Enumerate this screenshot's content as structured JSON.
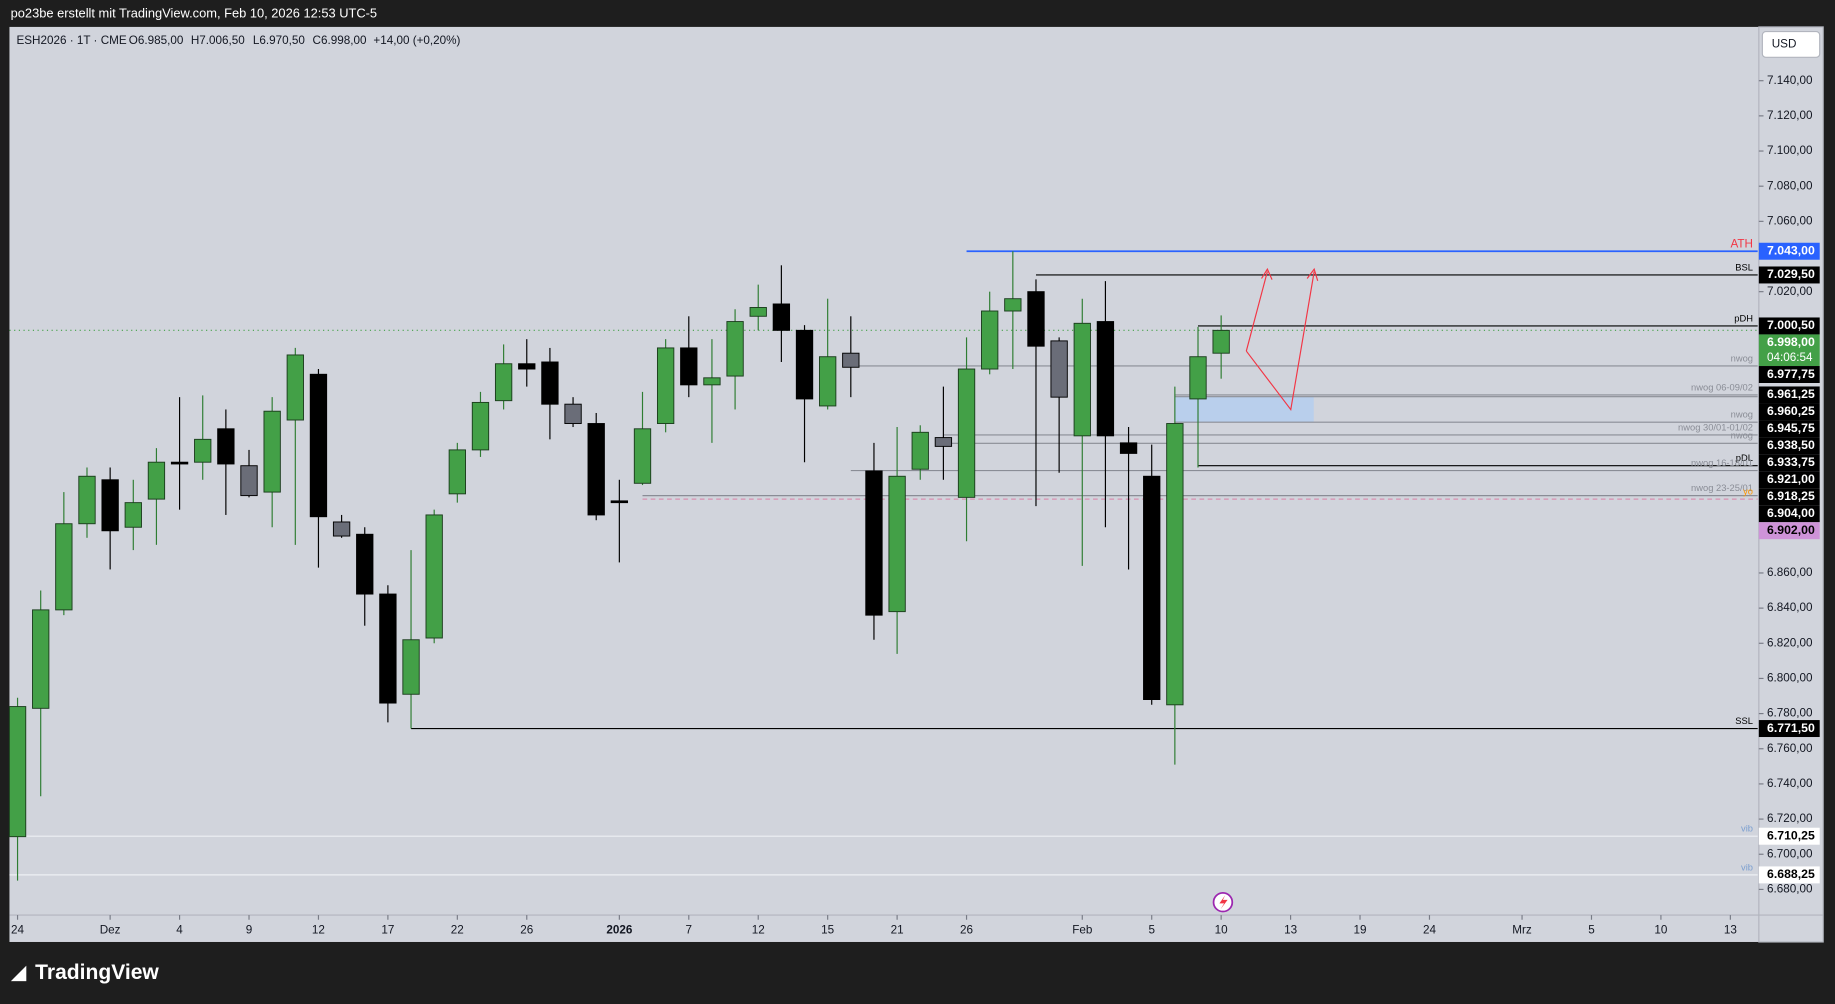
{
  "header": {
    "title": "po23be erstellt mit TradingView.com, Feb 10, 2026 12:53 UTC-5"
  },
  "legend": {
    "symbol": "ESH2026 · 1T · CME",
    "open": "O6.985,00",
    "high": "H7.006,50",
    "low": "L6.970,50",
    "close": "C6.998,00",
    "change": "+14,00 (+0,20%)"
  },
  "currency": "USD",
  "brand": "TradingView",
  "chart_data": {
    "type": "candlestick",
    "series": [
      {
        "open": [
          6710,
          6783,
          6839,
          6888,
          6913,
          6886,
          6902,
          6923,
          6923,
          6942,
          6921,
          6906,
          6947,
          6973,
          6889,
          6882,
          6848,
          6791,
          6823,
          6905,
          6930,
          6958,
          6979,
          6980,
          6956,
          6945,
          6901,
          6911,
          6945,
          6988,
          6967,
          6972,
          7006,
          7013,
          6998,
          6955,
          6985,
          6918,
          6838,
          6919,
          6937,
          6903,
          6976,
          7009,
          7020,
          6992,
          6938,
          7003,
          6934,
          6915,
          6785,
          6959,
          6985
        ],
        "high": [
          6789,
          6850,
          6906,
          6920,
          6920,
          6913,
          6931,
          6960,
          6961,
          6953,
          6930,
          6960,
          6988,
          6976,
          6893,
          6886,
          6853,
          6873,
          6896,
          6934,
          6963,
          6990,
          6993,
          6988,
          6960,
          6951,
          6913,
          6963,
          6993,
          7006,
          6993,
          7010,
          7024,
          7035,
          7001,
          7016,
          7006,
          6934,
          6943,
          6944,
          6966,
          6994,
          7020,
          7043,
          7027,
          6994,
          7016,
          7026,
          6943,
          6933,
          6966,
          7000,
          7006.5
        ],
        "low": [
          6685,
          6733,
          6836,
          6880,
          6862,
          6873,
          6876,
          6896,
          6913,
          6893,
          6903,
          6886,
          6876,
          6863,
          6880,
          6830,
          6775,
          6771.5,
          6820,
          6900,
          6926,
          6953,
          6966,
          6936,
          6943,
          6890,
          6866,
          6910,
          6940,
          6960,
          6934,
          6953,
          6998,
          6980,
          6923,
          6953,
          6960,
          6822,
          6814,
          6913,
          6913,
          6878,
          6973,
          6976,
          6898,
          6917,
          6864,
          6886,
          6862,
          6785,
          6751,
          6920,
          6970.5
        ],
        "close": [
          6784,
          6839,
          6888,
          6915,
          6884,
          6900,
          6923,
          6923,
          6936,
          6922,
          6904,
          6952,
          6984,
          6892,
          6881,
          6848,
          6786,
          6822,
          6893,
          6930,
          6957,
          6979,
          6976,
          6956,
          6945,
          6893,
          6900,
          6942,
          6988,
          6967,
          6971,
          7003,
          7011,
          6998,
          6959,
          6983,
          6977,
          6836,
          6915,
          6940,
          6932,
          6976,
          7009,
          7016,
          6989,
          6960,
          7002,
          6938,
          6928,
          6788,
          6945,
          6983,
          6998
        ]
      }
    ],
    "colors": {
      "up": "#43a047",
      "down": "#000000",
      "gray": "#6a6d78"
    },
    "gray_candles": [
      10,
      14,
      24,
      36,
      40,
      45
    ],
    "xlim": [
      -0.35,
      75.18
    ],
    "xticks": [
      {
        "value": 0,
        "label": "24"
      },
      {
        "value": 4,
        "label": "Dez"
      },
      {
        "value": 7,
        "label": "4"
      },
      {
        "value": 10,
        "label": "9"
      },
      {
        "value": 13,
        "label": "12"
      },
      {
        "value": 16,
        "label": "17"
      },
      {
        "value": 19,
        "label": "22"
      },
      {
        "value": 22,
        "label": "26"
      },
      {
        "value": 26,
        "label": "2026"
      },
      {
        "value": 29,
        "label": "7"
      },
      {
        "value": 32,
        "label": "12"
      },
      {
        "value": 35,
        "label": "15"
      },
      {
        "value": 38,
        "label": "21"
      },
      {
        "value": 41,
        "label": "26"
      },
      {
        "value": 46,
        "label": "Feb"
      },
      {
        "value": 49,
        "label": "5"
      },
      {
        "value": 52,
        "label": "10"
      },
      {
        "value": 55,
        "label": "13"
      },
      {
        "value": 58,
        "label": "19"
      },
      {
        "value": 61,
        "label": "24"
      },
      {
        "value": 65,
        "label": "Mrz"
      },
      {
        "value": 68,
        "label": "5"
      },
      {
        "value": 71,
        "label": "10"
      },
      {
        "value": 74,
        "label": "13"
      }
    ],
    "ylim": [
      6665.4,
      7170.6
    ],
    "yticks": [
      {
        "value": 7140,
        "label": "7.140,00"
      },
      {
        "value": 7120,
        "label": "7.120,00"
      },
      {
        "value": 7100,
        "label": "7.100,00"
      },
      {
        "value": 7080,
        "label": "7.080,00"
      },
      {
        "value": 7060,
        "label": "7.060,00"
      },
      {
        "value": 7020,
        "label": "7.020,00"
      },
      {
        "value": 6860,
        "label": "6.860,00"
      },
      {
        "value": 6840,
        "label": "6.840,00"
      },
      {
        "value": 6820,
        "label": "6.820,00"
      },
      {
        "value": 6800,
        "label": "6.800,00"
      },
      {
        "value": 6780,
        "label": "6.780,00"
      },
      {
        "value": 6760,
        "label": "6.760,00"
      },
      {
        "value": 6740,
        "label": "6.740,00"
      },
      {
        "value": 6720,
        "label": "6.720,00"
      },
      {
        "value": 6700,
        "label": "6.700,00"
      },
      {
        "value": 6680,
        "label": "6.680,00"
      }
    ],
    "levels": [
      {
        "value": 7043,
        "label": "7.043,00",
        "tag": "ATH",
        "start": 41,
        "color": "#2962ff",
        "bg": "#2962ff",
        "fg": "#ffffff",
        "tag_color": "#f23645"
      },
      {
        "value": 7029.5,
        "label": "7.029,50",
        "tag": "BSL",
        "start": 44,
        "color": "#000000",
        "bg": "#000000",
        "fg": "#ffffff",
        "tag_color": "#000000"
      },
      {
        "value": 7000.5,
        "label": "7.000,50",
        "tag": "pDH",
        "start": 51,
        "color": "#000000",
        "bg": "#000000",
        "fg": "#ffffff",
        "tag_color": "#000000"
      },
      {
        "value": 6977.75,
        "label": "6.977,75",
        "tag": "nwog",
        "start": 36,
        "color": "#8a8d96",
        "bg": "#000000",
        "fg": "#ffffff",
        "tag_color": "#8a8d96"
      },
      {
        "value": 6961.25,
        "label": "6.961,25",
        "tag": "nwog 06-09/02",
        "start": 50,
        "color": "#8a8d96",
        "bg": "#000000",
        "fg": "#ffffff",
        "tag_color": "#8a8d96"
      },
      {
        "value": 6960.25,
        "label": "6.960,25",
        "start": 50,
        "color": "#8a8d96",
        "bg": "#000000",
        "fg": "#ffffff"
      },
      {
        "value": 6945.75,
        "label": "6.945,75",
        "tag": "nwog",
        "start": 50,
        "color": "#8a8d96",
        "bg": "#000000",
        "fg": "#ffffff",
        "tag_color": "#8a8d96"
      },
      {
        "value": 6938.5,
        "label": "6.938,50",
        "tag": "nwog 30/01-01/02",
        "start": 40,
        "color": "#8a8d96",
        "bg": "#000000",
        "fg": "#ffffff",
        "tag_color": "#8a8d96"
      },
      {
        "value": 6933.75,
        "label": "6.933,75",
        "tag": "nwog",
        "start": 40,
        "color": "#8a8d96",
        "bg": "#000000",
        "fg": "#ffffff",
        "tag_color": "#8a8d96"
      },
      {
        "value": 6921,
        "label": "6.921,00",
        "tag": "pDL",
        "start": 51,
        "color": "#000000",
        "bg": "#000000",
        "fg": "#ffffff",
        "tag_color": "#000000"
      },
      {
        "value": 6918.25,
        "label": "6.918,25",
        "tag": "nwog 16-18/01",
        "start": 36,
        "color": "#8a8d96",
        "bg": "#000000",
        "fg": "#ffffff",
        "tag_color": "#8a8d96"
      },
      {
        "value": 6904,
        "label": "6.904,00",
        "tag": "nwog 23-25/01",
        "start": 27,
        "color": "#8a8d96",
        "bg": "#000000",
        "fg": "#ffffff",
        "tag_color": "#8a8d96"
      },
      {
        "value": 6902,
        "label": "6.902,00",
        "tag": "yo",
        "start": 27,
        "color": "#d98fb0",
        "dashed": true,
        "bg": "#ce93d8",
        "fg": "#000000",
        "tag_color": "#ff9800"
      },
      {
        "value": 6771.5,
        "label": "6.771,50",
        "tag": "SSL",
        "start": 17,
        "color": "#000000",
        "bg": "#000000",
        "fg": "#ffffff",
        "tag_color": "#000000"
      },
      {
        "value": 6710.25,
        "label": "6.710,25",
        "tag": "vib",
        "start": -0.35,
        "color": "#eef0f4",
        "bg": "#ffffff",
        "fg": "#000000",
        "tag_color": "#7b9fd0"
      },
      {
        "value": 6688.25,
        "label": "6.688,25",
        "tag": "vib",
        "start": -0.35,
        "color": "#eef0f4",
        "bg": "#ffffff",
        "fg": "#000000",
        "tag_color": "#7b9fd0"
      }
    ],
    "last_price": {
      "value": 6998,
      "label": "6.998,00",
      "countdown": "04:06:54",
      "color": "#43a047"
    },
    "zone": {
      "from": 50,
      "to": 56,
      "top": 6960.25,
      "bottom": 6945.75,
      "color": "#b3cdf0"
    }
  }
}
